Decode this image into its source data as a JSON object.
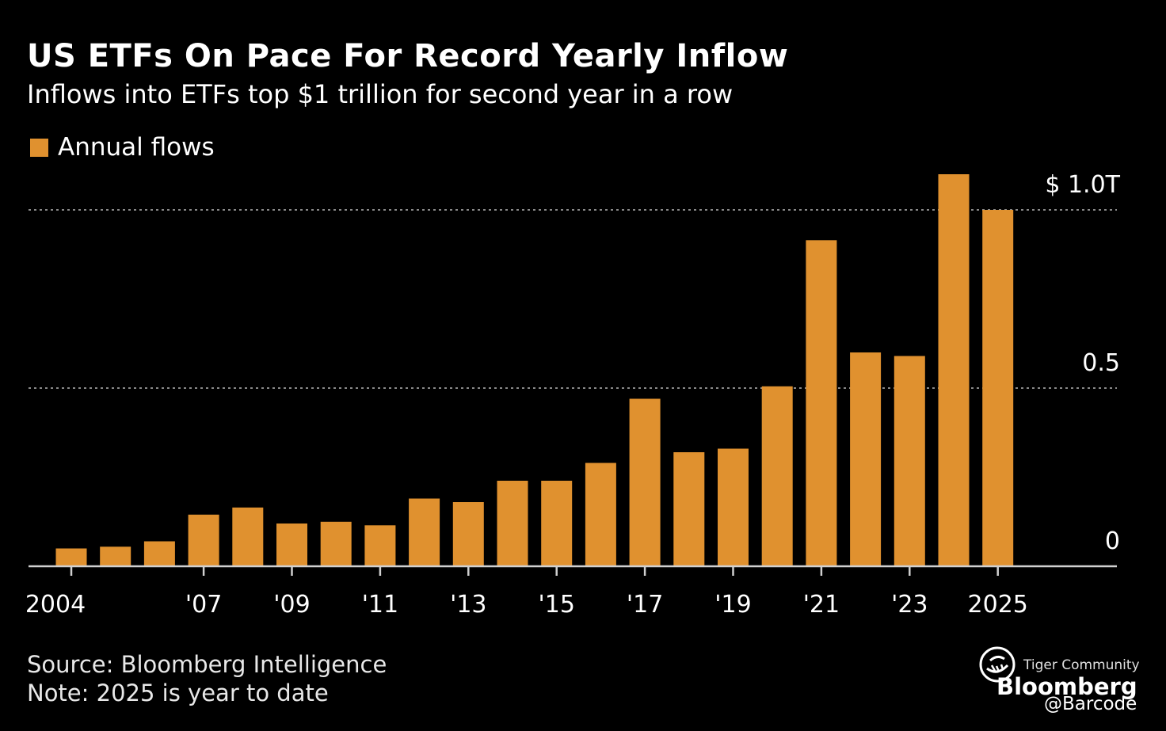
{
  "chart_data": {
    "type": "bar",
    "title": "US ETFs On Pace For Record Yearly Inflow",
    "subtitle": "Inflows into ETFs top $1 trillion for second year in a row",
    "categories": [
      "2004",
      "2005",
      "2006",
      "2007",
      "2008",
      "2009",
      "2010",
      "2011",
      "2012",
      "2013",
      "2014",
      "2015",
      "2016",
      "2017",
      "2018",
      "2019",
      "2020",
      "2021",
      "2022",
      "2023",
      "2024",
      "2025"
    ],
    "series": [
      {
        "name": "Annual flows",
        "color": "#E0912F",
        "values": [
          0.05,
          0.055,
          0.07,
          0.145,
          0.165,
          0.12,
          0.125,
          0.115,
          0.19,
          0.18,
          0.24,
          0.24,
          0.29,
          0.47,
          0.32,
          0.33,
          0.505,
          0.915,
          0.6,
          0.59,
          1.1,
          1.0
        ]
      }
    ],
    "x_tick_labels": [
      {
        "category": "2004",
        "label": "2004"
      },
      {
        "category": "2007",
        "label": "'07"
      },
      {
        "category": "2009",
        "label": "'09"
      },
      {
        "category": "2011",
        "label": "'11"
      },
      {
        "category": "2013",
        "label": "'13"
      },
      {
        "category": "2015",
        "label": "'15"
      },
      {
        "category": "2017",
        "label": "'17"
      },
      {
        "category": "2019",
        "label": "'19"
      },
      {
        "category": "2021",
        "label": "'21"
      },
      {
        "category": "2023",
        "label": "'23"
      },
      {
        "category": "2025",
        "label": "2025"
      }
    ],
    "y_ticks": [
      {
        "value": 0,
        "label": "0"
      },
      {
        "value": 0.5,
        "label": "0.5"
      },
      {
        "value": 1.0,
        "label": "$ 1.0T"
      }
    ],
    "ylim": [
      0,
      1.12
    ],
    "grid": "dotted horizontal",
    "legend": "top-left",
    "source": "Source: Bloomberg Intelligence",
    "note": "Note: 2025 is year to date"
  },
  "branding": {
    "community": "Tiger Community",
    "publisher": "Bloomberg",
    "handle": "@Barcode"
  },
  "colors": {
    "background": "#000000",
    "bar": "#E0912F",
    "grid": "#8a8a8a",
    "axis": "#d0d0d0"
  }
}
